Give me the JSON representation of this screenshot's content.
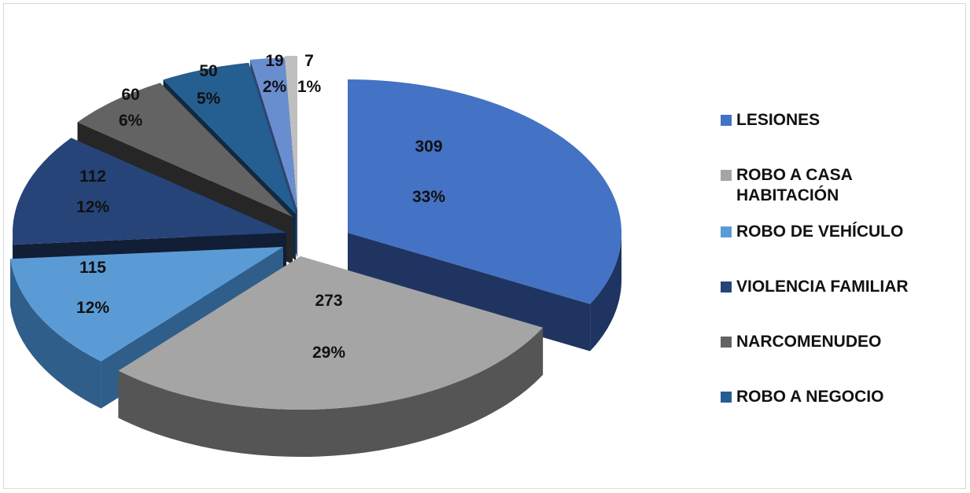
{
  "chart_data": {
    "type": "pie",
    "title": "",
    "legend_position": "right",
    "slices": [
      {
        "name": "LESIONES",
        "value": 309,
        "percent_label": "33%",
        "color": "#4472C4",
        "side_color": "#1F3461"
      },
      {
        "name": "ROBO A CASA HABITACIÓN",
        "value": 273,
        "percent_label": "29%",
        "color": "#A5A5A5",
        "side_color": "#555555"
      },
      {
        "name": "ROBO DE VEHÍCULO",
        "value": 115,
        "percent_label": "12%",
        "color": "#5B9BD5",
        "side_color": "#2F5E8A"
      },
      {
        "name": "VIOLENCIA FAMILIAR",
        "value": 112,
        "percent_label": "12%",
        "color": "#264478",
        "side_color": "#111E36"
      },
      {
        "name": "NARCOMENUDEO",
        "value": 60,
        "percent_label": "6%",
        "color": "#636363",
        "side_color": "#262626"
      },
      {
        "name": "ROBO A NEGOCIO",
        "value": 50,
        "percent_label": "5%",
        "color": "#255E91",
        "side_color": "#102A42"
      },
      {
        "name": "",
        "value": 19,
        "percent_label": "2%",
        "color": "#698ED0",
        "side_color": "#2F4570"
      },
      {
        "name": "",
        "value": 7,
        "percent_label": "1%",
        "color": "#BFBFBF",
        "side_color": "#6E6E6E"
      }
    ],
    "legend_entries": [
      "LESIONES",
      "ROBO A CASA HABITACIÓN",
      "ROBO DE VEHÍCULO",
      "VIOLENCIA FAMILIAR",
      "NARCOMENUDEO",
      "ROBO A NEGOCIO"
    ]
  }
}
